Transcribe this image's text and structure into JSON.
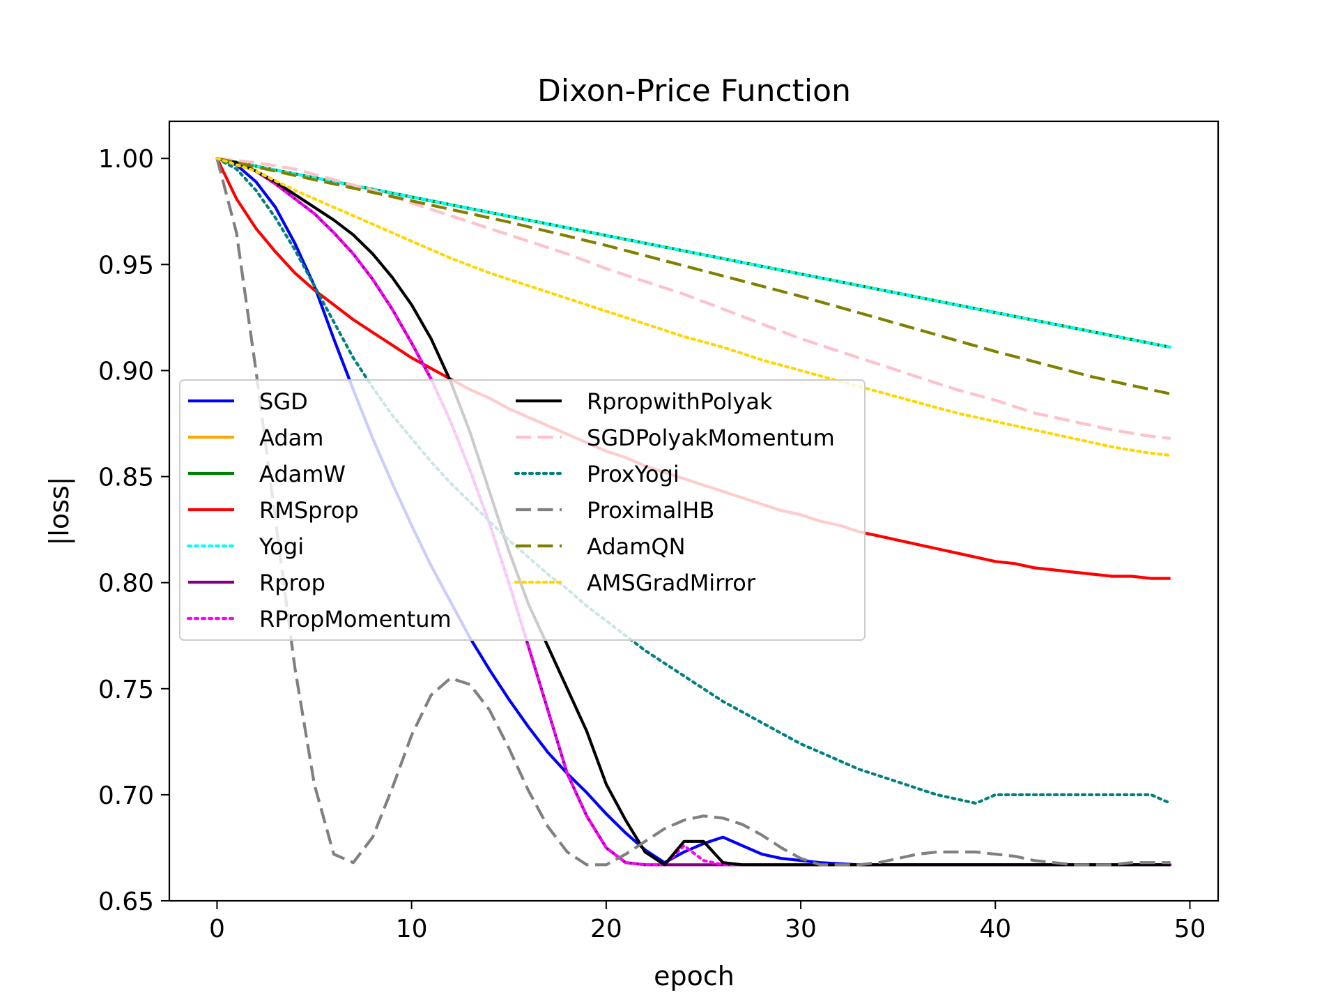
{
  "chart_data": {
    "type": "line",
    "title": "Dixon-Price Function",
    "xlabel": "epoch",
    "ylabel": "|loss|",
    "xlim": [
      -2.45,
      51.45
    ],
    "ylim": [
      0.65,
      1.0175
    ],
    "xticks": [
      0,
      10,
      20,
      30,
      40,
      50
    ],
    "yticks": [
      0.65,
      0.7,
      0.75,
      0.8,
      0.85,
      0.9,
      0.95,
      1.0
    ],
    "xtick_labels": [
      "0",
      "10",
      "20",
      "30",
      "40",
      "50"
    ],
    "ytick_labels": [
      "0.65",
      "0.70",
      "0.75",
      "0.80",
      "0.85",
      "0.90",
      "0.95",
      "1.00"
    ],
    "grid": false,
    "legend_position": "center-left",
    "series": [
      {
        "name": "SGD",
        "color": "#0000ff",
        "style": "solid",
        "x": [
          0,
          1,
          2,
          3,
          4,
          5,
          6,
          7,
          8,
          9,
          10,
          11,
          12,
          13,
          14,
          15,
          16,
          17,
          18,
          19,
          20,
          21,
          22,
          23,
          24,
          25,
          26,
          27,
          28,
          29,
          30,
          31,
          32,
          33,
          34,
          35,
          36,
          37,
          38,
          39,
          40,
          41,
          42,
          43,
          44,
          45,
          46,
          47,
          48,
          49
        ],
        "values": [
          1.0,
          0.997,
          0.989,
          0.977,
          0.96,
          0.94,
          0.915,
          0.891,
          0.868,
          0.847,
          0.827,
          0.808,
          0.791,
          0.774,
          0.759,
          0.745,
          0.732,
          0.72,
          0.71,
          0.701,
          0.691,
          0.682,
          0.674,
          0.668,
          0.673,
          0.677,
          0.68,
          0.676,
          0.672,
          0.67,
          0.669,
          0.668,
          0.6675,
          0.667,
          0.667,
          0.667,
          0.667,
          0.667,
          0.667,
          0.667,
          0.667,
          0.667,
          0.667,
          0.667,
          0.667,
          0.667,
          0.667,
          0.667,
          0.667,
          0.667
        ]
      },
      {
        "name": "Adam",
        "color": "#ffa500",
        "style": "solid",
        "x": [
          0,
          49
        ],
        "values": [
          1.0,
          0.911
        ]
      },
      {
        "name": "AdamW",
        "color": "#008000",
        "style": "solid",
        "x": [
          0,
          49
        ],
        "values": [
          1.0,
          0.911
        ]
      },
      {
        "name": "RMSprop",
        "color": "#ff0000",
        "style": "solid",
        "x": [
          0,
          1,
          2,
          3,
          4,
          5,
          6,
          7,
          8,
          9,
          10,
          11,
          12,
          13,
          14,
          15,
          16,
          17,
          18,
          19,
          20,
          21,
          22,
          23,
          24,
          25,
          26,
          27,
          28,
          29,
          30,
          31,
          32,
          33,
          34,
          35,
          36,
          37,
          38,
          39,
          40,
          41,
          42,
          43,
          44,
          45,
          46,
          47,
          48,
          49
        ],
        "values": [
          1.0,
          0.981,
          0.967,
          0.956,
          0.946,
          0.938,
          0.931,
          0.924,
          0.918,
          0.912,
          0.906,
          0.901,
          0.896,
          0.891,
          0.887,
          0.882,
          0.878,
          0.874,
          0.87,
          0.866,
          0.862,
          0.859,
          0.855,
          0.852,
          0.849,
          0.846,
          0.843,
          0.84,
          0.837,
          0.834,
          0.832,
          0.829,
          0.827,
          0.824,
          0.822,
          0.82,
          0.818,
          0.816,
          0.814,
          0.812,
          0.81,
          0.809,
          0.807,
          0.806,
          0.805,
          0.804,
          0.803,
          0.803,
          0.802,
          0.802
        ]
      },
      {
        "name": "Yogi",
        "color": "#00ffff",
        "style": "dotted",
        "x": [
          0,
          49
        ],
        "values": [
          1.0,
          0.911
        ]
      },
      {
        "name": "Rprop",
        "color": "#800080",
        "style": "solid",
        "x": [
          0,
          1,
          2,
          3,
          4,
          5,
          6,
          7,
          8,
          9,
          10,
          11,
          12,
          13,
          14,
          15,
          16,
          17,
          18,
          19,
          20,
          21,
          22,
          23,
          24,
          25,
          26,
          27,
          28,
          29,
          30,
          49
        ],
        "values": [
          1.0,
          0.998,
          0.994,
          0.988,
          0.981,
          0.974,
          0.965,
          0.955,
          0.943,
          0.929,
          0.913,
          0.896,
          0.876,
          0.853,
          0.828,
          0.8,
          0.77,
          0.74,
          0.71,
          0.69,
          0.675,
          0.668,
          0.667,
          0.667,
          0.667,
          0.667,
          0.667,
          0.667,
          0.667,
          0.667,
          0.667,
          0.667
        ]
      },
      {
        "name": "RPropMomentum",
        "color": "#ff00ff",
        "style": "dotted",
        "x": [
          0,
          1,
          2,
          3,
          4,
          5,
          6,
          7,
          8,
          9,
          10,
          11,
          12,
          13,
          14,
          15,
          16,
          17,
          18,
          19,
          20,
          21,
          22,
          23,
          24,
          25,
          26,
          27,
          28,
          29,
          30,
          49
        ],
        "values": [
          1.0,
          0.998,
          0.994,
          0.988,
          0.981,
          0.974,
          0.965,
          0.955,
          0.943,
          0.929,
          0.913,
          0.896,
          0.876,
          0.853,
          0.828,
          0.8,
          0.77,
          0.74,
          0.71,
          0.69,
          0.675,
          0.668,
          0.667,
          0.667,
          0.676,
          0.669,
          0.667,
          0.667,
          0.667,
          0.667,
          0.667,
          0.667
        ]
      },
      {
        "name": "RpropwithPolyak",
        "color": "#000000",
        "style": "solid",
        "x": [
          0,
          1,
          2,
          3,
          4,
          5,
          6,
          7,
          8,
          9,
          10,
          11,
          12,
          13,
          14,
          15,
          16,
          17,
          18,
          19,
          20,
          21,
          22,
          23,
          24,
          25,
          26,
          27,
          28,
          29,
          30,
          49
        ],
        "values": [
          1.0,
          0.998,
          0.994,
          0.989,
          0.983,
          0.977,
          0.971,
          0.964,
          0.955,
          0.944,
          0.931,
          0.915,
          0.895,
          0.871,
          0.843,
          0.815,
          0.79,
          0.77,
          0.75,
          0.73,
          0.705,
          0.688,
          0.673,
          0.667,
          0.678,
          0.678,
          0.668,
          0.667,
          0.667,
          0.667,
          0.667,
          0.667
        ]
      },
      {
        "name": "SGDPolyakMomentum",
        "color": "#ffc0cb",
        "style": "dashed",
        "x": [
          0,
          2,
          4,
          6,
          8,
          10,
          12,
          14,
          16,
          18,
          20,
          22,
          24,
          26,
          28,
          30,
          32,
          34,
          36,
          38,
          40,
          42,
          44,
          46,
          48,
          49
        ],
        "values": [
          1.0,
          0.998,
          0.995,
          0.99,
          0.985,
          0.979,
          0.973,
          0.967,
          0.961,
          0.955,
          0.948,
          0.942,
          0.936,
          0.929,
          0.922,
          0.915,
          0.909,
          0.903,
          0.897,
          0.891,
          0.886,
          0.88,
          0.876,
          0.872,
          0.869,
          0.868
        ]
      },
      {
        "name": "ProxYogi",
        "color": "#008080",
        "style": "dotted",
        "x": [
          0,
          1,
          2,
          3,
          4,
          5,
          6,
          7,
          8,
          9,
          10,
          11,
          12,
          13,
          14,
          15,
          16,
          17,
          18,
          19,
          20,
          21,
          22,
          23,
          24,
          25,
          26,
          27,
          28,
          29,
          30,
          31,
          32,
          33,
          34,
          35,
          36,
          37,
          38,
          39,
          40,
          41,
          42,
          43,
          44,
          45,
          46,
          47,
          48,
          49
        ],
        "values": [
          1.0,
          0.995,
          0.985,
          0.972,
          0.957,
          0.94,
          0.923,
          0.906,
          0.892,
          0.879,
          0.868,
          0.857,
          0.847,
          0.838,
          0.829,
          0.82,
          0.812,
          0.804,
          0.797,
          0.789,
          0.782,
          0.775,
          0.768,
          0.762,
          0.756,
          0.75,
          0.744,
          0.739,
          0.734,
          0.729,
          0.724,
          0.72,
          0.716,
          0.712,
          0.709,
          0.706,
          0.703,
          0.7,
          0.698,
          0.696,
          0.7,
          0.7,
          0.7,
          0.7,
          0.7,
          0.7,
          0.7,
          0.7,
          0.7,
          0.696
        ]
      },
      {
        "name": "ProximalHB",
        "color": "#808080",
        "style": "dashed",
        "x": [
          0,
          1,
          2,
          3,
          4,
          5,
          6,
          7,
          8,
          9,
          10,
          11,
          12,
          13,
          14,
          15,
          16,
          17,
          18,
          19,
          20,
          21,
          22,
          23,
          24,
          25,
          26,
          27,
          28,
          29,
          30,
          31,
          32,
          33,
          34,
          35,
          36,
          37,
          38,
          39,
          40,
          41,
          42,
          43,
          44,
          45,
          46,
          47,
          48,
          49
        ],
        "values": [
          1.0,
          0.965,
          0.9,
          0.83,
          0.76,
          0.705,
          0.672,
          0.668,
          0.68,
          0.703,
          0.728,
          0.747,
          0.755,
          0.752,
          0.74,
          0.722,
          0.702,
          0.685,
          0.673,
          0.667,
          0.667,
          0.672,
          0.678,
          0.684,
          0.688,
          0.69,
          0.689,
          0.686,
          0.681,
          0.675,
          0.67,
          0.667,
          0.667,
          0.667,
          0.668,
          0.67,
          0.672,
          0.673,
          0.673,
          0.673,
          0.672,
          0.671,
          0.669,
          0.668,
          0.667,
          0.667,
          0.667,
          0.668,
          0.668,
          0.668
        ]
      },
      {
        "name": "AdamQN",
        "color": "#808000",
        "style": "dashed",
        "x": [
          0,
          5,
          10,
          15,
          20,
          25,
          30,
          35,
          40,
          45,
          49
        ],
        "values": [
          1.0,
          0.99,
          0.98,
          0.97,
          0.959,
          0.947,
          0.935,
          0.922,
          0.909,
          0.897,
          0.889
        ]
      },
      {
        "name": "AMSGradMirror",
        "color": "#ffd700",
        "style": "dotted",
        "x": [
          0,
          2,
          4,
          6,
          8,
          10,
          12,
          14,
          16,
          18,
          20,
          22,
          24,
          26,
          28,
          30,
          32,
          34,
          36,
          38,
          40,
          42,
          44,
          46,
          48,
          49
        ],
        "values": [
          1.0,
          0.994,
          0.985,
          0.977,
          0.969,
          0.961,
          0.953,
          0.946,
          0.94,
          0.934,
          0.928,
          0.922,
          0.916,
          0.911,
          0.905,
          0.9,
          0.895,
          0.89,
          0.885,
          0.88,
          0.876,
          0.872,
          0.868,
          0.864,
          0.861,
          0.86
        ]
      }
    ]
  }
}
